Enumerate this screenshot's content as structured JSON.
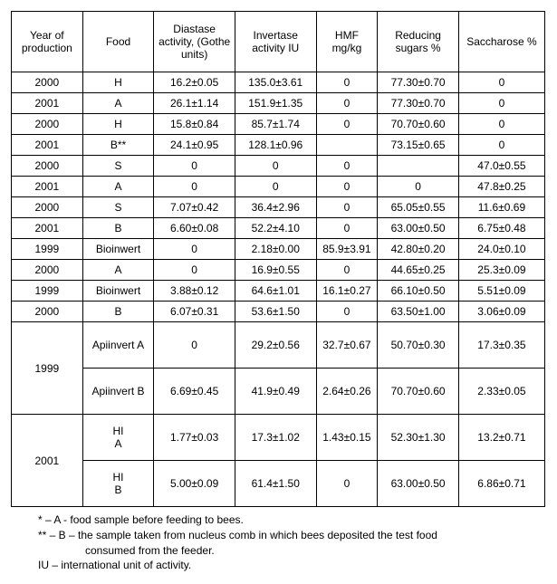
{
  "headers": {
    "year": "Year of production",
    "food": "Food",
    "diastase": "Diastase activity, (Gothe units)",
    "invertase": "Invertase activity IU",
    "hmf": "HMF mg/kg",
    "reducing": "Reducing sugars %",
    "saccharose": "Saccharose %"
  },
  "rows": [
    {
      "year": "2000",
      "food": "H",
      "diastase": "16.2±0.05",
      "invertase": "135.0±3.61",
      "hmf": "0",
      "reducing": "77.30±0.70",
      "saccharose": "0"
    },
    {
      "year": "2001",
      "food": "A",
      "diastase": "26.1±1.14",
      "invertase": "151.9±1.35",
      "hmf": "0",
      "reducing": "77.30±0.70",
      "saccharose": "0"
    },
    {
      "year": "2000",
      "food": "H",
      "diastase": "15.8±0.84",
      "invertase": "85.7±1.74",
      "hmf": "0",
      "reducing": "70.70±0.60",
      "saccharose": "0"
    },
    {
      "year": "2001",
      "food": "B**",
      "diastase": "24.1±0.95",
      "invertase": "128.1±0.96",
      "hmf": "",
      "reducing": "73.15±0.65",
      "saccharose": "0"
    },
    {
      "year": "2000",
      "food": "S",
      "diastase": "0",
      "invertase": "0",
      "hmf": "0",
      "reducing": "",
      "saccharose": "47.0±0.55"
    },
    {
      "year": "2001",
      "food": "A",
      "diastase": "0",
      "invertase": "0",
      "hmf": "0",
      "reducing": "0",
      "saccharose": "47.8±0.25"
    },
    {
      "year": "2000",
      "food": "S",
      "diastase": "7.07±0.42",
      "invertase": "36.4±2.96",
      "hmf": "0",
      "reducing": "65.05±0.55",
      "saccharose": "11.6±0.69"
    },
    {
      "year": "2001",
      "food": "B",
      "diastase": "6.60±0.08",
      "invertase": "52.2±4.10",
      "hmf": "0",
      "reducing": "63.00±0.50",
      "saccharose": "6.75±0.48"
    },
    {
      "year": "1999",
      "food": "Bioinwert",
      "diastase": "0",
      "invertase": "2.18±0.00",
      "hmf": "85.9±3.91",
      "reducing": "42.80±0.20",
      "saccharose": "24.0±0.10"
    },
    {
      "year": "2000",
      "food": "A",
      "diastase": "0",
      "invertase": "16.9±0.55",
      "hmf": "0",
      "reducing": "44.65±0.25",
      "saccharose": "25.3±0.09"
    },
    {
      "year": "1999",
      "food": "Bioinwert",
      "diastase": "3.88±0.12",
      "invertase": "64.6±1.01",
      "hmf": "16.1±0.27",
      "reducing": "66.10±0.50",
      "saccharose": "5.51±0.09"
    },
    {
      "year": "2000",
      "food": "B",
      "diastase": "6.07±0.31",
      "invertase": "53.6±1.50",
      "hmf": "0",
      "reducing": "63.50±1.00",
      "saccharose": "3.06±0.09"
    }
  ],
  "group1999": {
    "year": "1999",
    "sub": [
      {
        "food": "Apiinvert A",
        "diastase": "0",
        "invertase": "29.2±0.56",
        "hmf": "32.7±0.67",
        "reducing": "50.70±0.30",
        "saccharose": "17.3±0.35"
      },
      {
        "food": "Apiinvert B",
        "diastase": "6.69±0.45",
        "invertase": "41.9±0.49",
        "hmf": "2.64±0.26",
        "reducing": "70.70±0.60",
        "saccharose": "2.33±0.05"
      }
    ]
  },
  "group2001": {
    "year": "2001",
    "sub": [
      {
        "food": "HI\nA",
        "diastase": "1.77±0.03",
        "invertase": "17.3±1.02",
        "hmf": "1.43±0.15",
        "reducing": "52.30±1.30",
        "saccharose": "13.2±0.71"
      },
      {
        "food": "HI\nB",
        "diastase": "5.00±0.09",
        "invertase": "61.4±1.50",
        "hmf": "0",
        "reducing": "63.00±0.50",
        "saccharose": "6.86±0.71"
      }
    ]
  },
  "footnotes": {
    "l1": "*   – A - food sample before feeding to bees.",
    "l2": "** – B – the sample taken from nucleus comb in which bees deposited the test food",
    "l3": "consumed from the feeder.",
    "l4": "IU – international unit of activity."
  }
}
